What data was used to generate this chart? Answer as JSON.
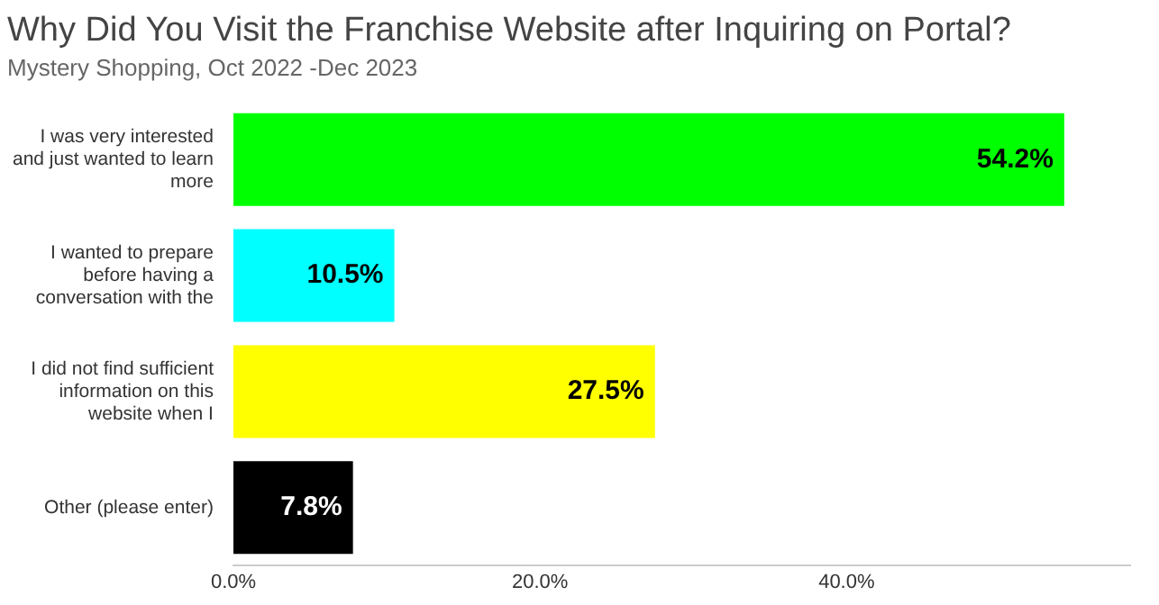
{
  "chart_data": {
    "type": "bar",
    "orientation": "horizontal",
    "title": "Why Did You Visit the Franchise Website after Inquiring on Portal?",
    "subtitle": "Mystery Shopping, Oct 2022 -Dec 2023",
    "categories": [
      "I was very interested and just wanted to learn more",
      "I wanted to prepare before having a conversation with the",
      "I did not find sufficient information on this website when I",
      "Other (please enter)"
    ],
    "values": [
      54.2,
      10.5,
      27.5,
      7.8
    ],
    "colors": [
      "#00ff00",
      "#00ffff",
      "#ffff00",
      "#000000"
    ],
    "value_labels": [
      "54.2%",
      "10.5%",
      "27.5%",
      "7.8%"
    ],
    "xlim": [
      0,
      58.5
    ],
    "xticks": [
      {
        "value": 0,
        "label": "0.0%"
      },
      {
        "value": 20,
        "label": "20.0%"
      },
      {
        "value": 40,
        "label": "40.0%"
      }
    ],
    "grid": false,
    "legend": false
  }
}
